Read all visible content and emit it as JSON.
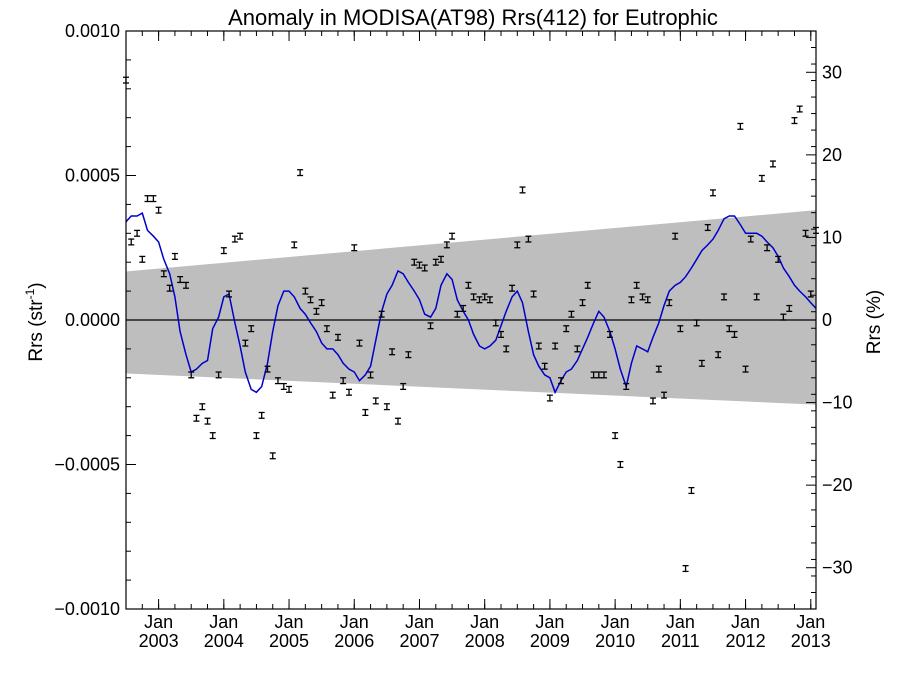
{
  "chart_data": {
    "type": "scatter",
    "title": "Anomaly in MODISA(AT98) Rrs(412) for Eutrophic",
    "ylabel": "Rrs (str",
    "ylabel_superscript": "-1",
    "ylabel_close": ")",
    "y2label": "Rrs (%)",
    "xlim": [
      2002.5,
      2013.08
    ],
    "ylim": [
      -0.001,
      0.001
    ],
    "y2lim": [
      -35,
      35
    ],
    "x_ticks": [
      {
        "x": 2003.0,
        "month": "Jan",
        "year": "2003"
      },
      {
        "x": 2004.0,
        "month": "Jan",
        "year": "2004"
      },
      {
        "x": 2005.0,
        "month": "Jan",
        "year": "2005"
      },
      {
        "x": 2006.0,
        "month": "Jan",
        "year": "2006"
      },
      {
        "x": 2007.0,
        "month": "Jan",
        "year": "2007"
      },
      {
        "x": 2008.0,
        "month": "Jan",
        "year": "2008"
      },
      {
        "x": 2009.0,
        "month": "Jan",
        "year": "2009"
      },
      {
        "x": 2010.0,
        "month": "Jan",
        "year": "2010"
      },
      {
        "x": 2011.0,
        "month": "Jan",
        "year": "2011"
      },
      {
        "x": 2012.0,
        "month": "Jan",
        "year": "2012"
      },
      {
        "x": 2013.0,
        "month": "Jan",
        "year": "2013"
      }
    ],
    "y_ticks": [
      {
        "value": 0.001,
        "label": "0.0010"
      },
      {
        "value": 0.0005,
        "label": "0.0005"
      },
      {
        "value": 0.0,
        "label": "0.0000"
      },
      {
        "value": -0.0005,
        "label": "−0.0005"
      },
      {
        "value": -0.001,
        "label": "−0.0010"
      }
    ],
    "y2_ticks": [
      {
        "value": 30,
        "label": "30"
      },
      {
        "value": 20,
        "label": "20"
      },
      {
        "value": 10,
        "label": "10"
      },
      {
        "value": 0,
        "label": "0"
      },
      {
        "value": -10,
        "label": "−10"
      },
      {
        "value": -20,
        "label": "−20"
      },
      {
        "value": -30,
        "label": "−30"
      }
    ],
    "band": {
      "x": [
        2002.5,
        2013.08
      ],
      "upper": [
        0.000168,
        0.00038
      ],
      "lower": [
        -0.000185,
        -0.000293
      ],
      "color": "#bebebe"
    },
    "zero_line": 0.0,
    "points": {
      "color": "#000000",
      "error": 1e-05,
      "x": [
        2002.5,
        2002.58,
        2002.67,
        2002.75,
        2002.83,
        2002.92,
        2003.0,
        2003.08,
        2003.17,
        2003.25,
        2003.33,
        2003.42,
        2003.5,
        2003.58,
        2003.67,
        2003.75,
        2003.83,
        2003.92,
        2004.0,
        2004.08,
        2004.17,
        2004.25,
        2004.33,
        2004.42,
        2004.5,
        2004.58,
        2004.67,
        2004.75,
        2004.83,
        2004.92,
        2005.0,
        2005.08,
        2005.17,
        2005.25,
        2005.33,
        2005.42,
        2005.5,
        2005.58,
        2005.67,
        2005.75,
        2005.83,
        2005.92,
        2006.0,
        2006.08,
        2006.17,
        2006.25,
        2006.33,
        2006.42,
        2006.5,
        2006.58,
        2006.67,
        2006.75,
        2006.83,
        2006.92,
        2007.0,
        2007.08,
        2007.17,
        2007.25,
        2007.33,
        2007.42,
        2007.5,
        2007.58,
        2007.67,
        2007.75,
        2007.83,
        2007.92,
        2008.0,
        2008.08,
        2008.17,
        2008.25,
        2008.33,
        2008.42,
        2008.5,
        2008.58,
        2008.67,
        2008.75,
        2008.83,
        2008.92,
        2009.0,
        2009.08,
        2009.17,
        2009.25,
        2009.33,
        2009.42,
        2009.5,
        2009.58,
        2009.67,
        2009.75,
        2009.83,
        2009.92,
        2010.0,
        2010.08,
        2010.17,
        2010.25,
        2010.33,
        2010.42,
        2010.5,
        2010.58,
        2010.67,
        2010.75,
        2010.83,
        2010.92,
        2011.0,
        2011.08,
        2011.17,
        2011.25,
        2011.33,
        2011.42,
        2011.5,
        2011.58,
        2011.67,
        2011.75,
        2011.83,
        2011.92,
        2012.0,
        2012.08,
        2012.17,
        2012.25,
        2012.33,
        2012.42,
        2012.5,
        2012.58,
        2012.67,
        2012.75,
        2012.83,
        2012.92,
        2013.0,
        2013.08
      ],
      "y": [
        0.00083,
        0.00027,
        0.0003,
        0.00021,
        0.00042,
        0.00042,
        0.00038,
        0.00016,
        0.00011,
        0.00022,
        0.00014,
        0.00012,
        -0.00019,
        -0.00034,
        -0.0003,
        -0.00035,
        -0.0004,
        -0.00019,
        0.00024,
        9e-05,
        0.00028,
        0.00029,
        -8e-05,
        -3e-05,
        -0.0004,
        -0.00033,
        -0.00017,
        -0.00047,
        -0.00021,
        -0.00023,
        -0.00024,
        0.00026,
        0.00051,
        0.0001,
        7e-05,
        3e-05,
        6e-05,
        -3e-05,
        -0.00026,
        -6e-05,
        -0.00021,
        -0.00025,
        0.00025,
        -8e-05,
        -0.00032,
        -0.00019,
        -0.00028,
        2e-05,
        -0.0003,
        -0.00011,
        -0.00035,
        -0.00023,
        -0.00012,
        0.0002,
        0.00019,
        0.00018,
        -2e-05,
        0.0002,
        0.00021,
        0.00026,
        0.00029,
        2e-05,
        4e-05,
        0.00012,
        8e-05,
        7e-05,
        8e-05,
        7e-05,
        -1e-05,
        -5e-05,
        -0.0001,
        0.00011,
        0.00026,
        0.00045,
        0.00028,
        9e-05,
        -9e-05,
        -0.00016,
        -0.00027,
        -9e-05,
        -0.00021,
        -3e-05,
        2e-05,
        -0.0001,
        6e-05,
        0.00012,
        -0.00019,
        -0.00019,
        -0.00019,
        -5e-05,
        -0.0004,
        -0.0005,
        -0.00023,
        7e-05,
        0.00012,
        8e-05,
        7e-05,
        -0.00028,
        -0.00017,
        -0.00026,
        6e-05,
        0.00029,
        -3e-05,
        -0.00086,
        -0.00059,
        -1e-05,
        -0.00015,
        0.00032,
        0.00044,
        -0.00012,
        8e-05,
        -3e-05,
        -5e-05,
        0.00067,
        -0.00017,
        0.00028,
        8e-05,
        0.00049,
        0.00025,
        0.00054,
        0.00021,
        1e-05,
        4e-05,
        0.00069,
        0.00073,
        0.0003,
        9e-05,
        0.00031
      ]
    },
    "running_mean": {
      "color": "#0000cc",
      "x": [
        2002.5,
        2002.58,
        2002.67,
        2002.75,
        2002.83,
        2002.92,
        2003.0,
        2003.08,
        2003.17,
        2003.25,
        2003.33,
        2003.42,
        2003.5,
        2003.58,
        2003.67,
        2003.75,
        2003.83,
        2003.92,
        2004.0,
        2004.08,
        2004.17,
        2004.25,
        2004.33,
        2004.42,
        2004.5,
        2004.58,
        2004.67,
        2004.75,
        2004.83,
        2004.92,
        2005.0,
        2005.08,
        2005.17,
        2005.25,
        2005.33,
        2005.42,
        2005.5,
        2005.58,
        2005.67,
        2005.75,
        2005.83,
        2005.92,
        2006.0,
        2006.08,
        2006.17,
        2006.25,
        2006.33,
        2006.42,
        2006.5,
        2006.58,
        2006.67,
        2006.75,
        2006.83,
        2006.92,
        2007.0,
        2007.08,
        2007.17,
        2007.25,
        2007.33,
        2007.42,
        2007.5,
        2007.58,
        2007.67,
        2007.75,
        2007.83,
        2007.92,
        2008.0,
        2008.08,
        2008.17,
        2008.25,
        2008.33,
        2008.42,
        2008.5,
        2008.58,
        2008.67,
        2008.75,
        2008.83,
        2008.92,
        2009.0,
        2009.08,
        2009.17,
        2009.25,
        2009.33,
        2009.42,
        2009.5,
        2009.58,
        2009.67,
        2009.75,
        2009.83,
        2009.92,
        2010.0,
        2010.08,
        2010.17,
        2010.25,
        2010.33,
        2010.42,
        2010.5,
        2010.58,
        2010.67,
        2010.75,
        2010.83,
        2010.92,
        2011.0,
        2011.08,
        2011.17,
        2011.25,
        2011.33,
        2011.42,
        2011.5,
        2011.58,
        2011.67,
        2011.75,
        2011.83,
        2011.92,
        2012.0,
        2012.08,
        2012.17,
        2012.25,
        2012.33,
        2012.42,
        2012.5,
        2012.58,
        2012.67,
        2012.75,
        2012.83,
        2012.92,
        2013.0,
        2013.08
      ],
      "y": [
        0.00034,
        0.00036,
        0.00036,
        0.00037,
        0.00031,
        0.00029,
        0.00027,
        0.00021,
        0.00016,
        8e-05,
        -4e-05,
        -0.00012,
        -0.00018,
        -0.00017,
        -0.00015,
        -0.00014,
        -3e-05,
        1e-05,
        8e-05,
        9e-05,
        -1e-05,
        -9e-05,
        -0.00018,
        -0.00024,
        -0.00025,
        -0.00023,
        -0.00015,
        -4e-05,
        5e-05,
        0.0001,
        0.0001,
        8e-05,
        4e-05,
        2e-05,
        -1e-05,
        -4e-05,
        -8e-05,
        -0.0001,
        -0.0001,
        -0.00012,
        -0.00015,
        -0.00017,
        -0.00018,
        -0.00021,
        -0.00019,
        -0.00016,
        -7e-05,
        3e-05,
        9e-05,
        0.00012,
        0.00017,
        0.00016,
        0.00013,
        0.0001,
        7e-05,
        2e-05,
        1e-05,
        4e-05,
        0.00012,
        0.00016,
        0.00014,
        7e-05,
        3e-05,
        0.0,
        -5e-05,
        -9e-05,
        -0.0001,
        -9e-05,
        -7e-05,
        -2e-05,
        3e-05,
        8e-05,
        0.0001,
        6e-05,
        -4e-05,
        -0.00012,
        -0.00016,
        -0.00019,
        -0.0002,
        -0.00025,
        -0.00021,
        -0.00018,
        -0.00017,
        -0.00014,
        -0.0001,
        -6e-05,
        -1e-05,
        3e-05,
        1e-05,
        -4e-05,
        -0.0001,
        -0.00017,
        -0.00023,
        -0.00015,
        -9e-05,
        -0.0001,
        -0.00011,
        -6e-05,
        -1e-05,
        5e-05,
        0.0001,
        0.00012,
        0.00013,
        0.00015,
        0.00018,
        0.00021,
        0.00024,
        0.00026,
        0.00028,
        0.00031,
        0.00035,
        0.00036,
        0.00036,
        0.00033,
        0.0003,
        0.0003,
        0.0003,
        0.00029,
        0.00027,
        0.00025,
        0.00022,
        0.00018,
        0.00015,
        0.00012,
        0.0001,
        8e-05,
        6e-05,
        4e-05
      ]
    },
    "grid": false,
    "legend": "none"
  }
}
